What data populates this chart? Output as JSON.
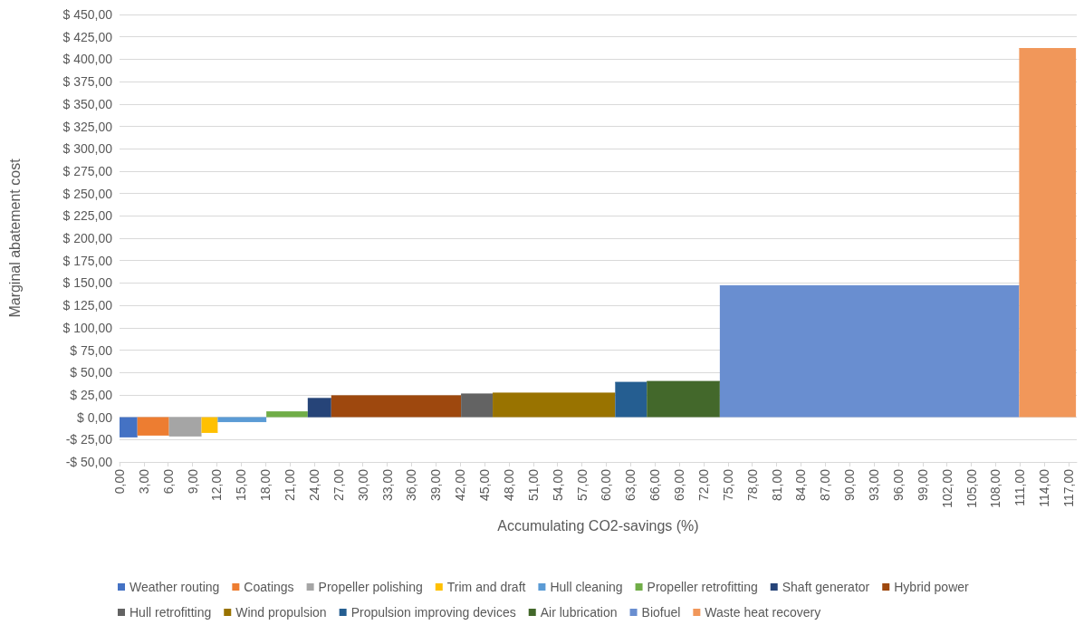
{
  "chart_data": {
    "type": "area",
    "xlabel": "Accumulating CO2-savings (%)",
    "ylabel": "Marginal abatement cost",
    "xlim": [
      0,
      118
    ],
    "xticks": [
      {
        "value": 0,
        "label": "0,00"
      },
      {
        "value": 3,
        "label": "3,00"
      },
      {
        "value": 6,
        "label": "6,00"
      },
      {
        "value": 9,
        "label": "9,00"
      },
      {
        "value": 12,
        "label": "12,00"
      },
      {
        "value": 15,
        "label": "15,00"
      },
      {
        "value": 18,
        "label": "18,00"
      },
      {
        "value": 21,
        "label": "21,00"
      },
      {
        "value": 24,
        "label": "24,00"
      },
      {
        "value": 27,
        "label": "27,00"
      },
      {
        "value": 30,
        "label": "30,00"
      },
      {
        "value": 33,
        "label": "33,00"
      },
      {
        "value": 36,
        "label": "36,00"
      },
      {
        "value": 39,
        "label": "39,00"
      },
      {
        "value": 42,
        "label": "42,00"
      },
      {
        "value": 45,
        "label": "45,00"
      },
      {
        "value": 48,
        "label": "48,00"
      },
      {
        "value": 51,
        "label": "51,00"
      },
      {
        "value": 54,
        "label": "54,00"
      },
      {
        "value": 57,
        "label": "57,00"
      },
      {
        "value": 60,
        "label": "60,00"
      },
      {
        "value": 63,
        "label": "63,00"
      },
      {
        "value": 66,
        "label": "66,00"
      },
      {
        "value": 69,
        "label": "69,00"
      },
      {
        "value": 72,
        "label": "72,00"
      },
      {
        "value": 75,
        "label": "75,00"
      },
      {
        "value": 78,
        "label": "78,00"
      },
      {
        "value": 81,
        "label": "81,00"
      },
      {
        "value": 84,
        "label": "84,00"
      },
      {
        "value": 87,
        "label": "87,00"
      },
      {
        "value": 90,
        "label": "90,00"
      },
      {
        "value": 93,
        "label": "93,00"
      },
      {
        "value": 96,
        "label": "96,00"
      },
      {
        "value": 99,
        "label": "99,00"
      },
      {
        "value": 102,
        "label": "102,00"
      },
      {
        "value": 105,
        "label": "105,00"
      },
      {
        "value": 108,
        "label": "108,00"
      },
      {
        "value": 111,
        "label": "111,00"
      },
      {
        "value": 114,
        "label": "114,00"
      },
      {
        "value": 117,
        "label": "117,00"
      }
    ],
    "ylim": [
      -50,
      450
    ],
    "yticks": [
      {
        "value": -50,
        "label": "-$ 50,00"
      },
      {
        "value": -25,
        "label": "-$ 25,00"
      },
      {
        "value": 0,
        "label": "$ 0,00"
      },
      {
        "value": 25,
        "label": "$ 25,00"
      },
      {
        "value": 50,
        "label": "$ 50,00"
      },
      {
        "value": 75,
        "label": "$ 75,00"
      },
      {
        "value": 100,
        "label": "$ 100,00"
      },
      {
        "value": 125,
        "label": "$ 125,00"
      },
      {
        "value": 150,
        "label": "$ 150,00"
      },
      {
        "value": 175,
        "label": "$ 175,00"
      },
      {
        "value": 200,
        "label": "$ 200,00"
      },
      {
        "value": 225,
        "label": "$ 225,00"
      },
      {
        "value": 250,
        "label": "$ 250,00"
      },
      {
        "value": 275,
        "label": "$ 275,00"
      },
      {
        "value": 300,
        "label": "$ 300,00"
      },
      {
        "value": 325,
        "label": "$ 325,00"
      },
      {
        "value": 350,
        "label": "$ 350,00"
      },
      {
        "value": 375,
        "label": "$ 375,00"
      },
      {
        "value": 400,
        "label": "$ 400,00"
      },
      {
        "value": 425,
        "label": "$ 425,00"
      },
      {
        "value": 450,
        "label": "$ 450,00"
      }
    ],
    "grid": "y",
    "legend": "bottom",
    "marker": "none",
    "series": [
      {
        "name": "Weather routing",
        "color": "#4472c4",
        "x": [
          0,
          2.2
        ],
        "values": [
          -22,
          -22
        ]
      },
      {
        "name": "Coatings",
        "color": "#ed7d31",
        "x": [
          2.2,
          6.1
        ],
        "values": [
          -20,
          -20
        ]
      },
      {
        "name": "Propeller polishing",
        "color": "#a5a5a5",
        "x": [
          6.1,
          10.1
        ],
        "values": [
          -21,
          -21
        ]
      },
      {
        "name": "Trim and draft",
        "color": "#ffc000",
        "x": [
          10.1,
          12.1
        ],
        "values": [
          -17,
          -17
        ]
      },
      {
        "name": "Hull cleaning",
        "color": "#5b9bd5",
        "x": [
          12.1,
          18.1
        ],
        "values": [
          -5,
          -5
        ]
      },
      {
        "name": "Propeller retrofitting",
        "color": "#70ad47",
        "x": [
          18.1,
          23.2
        ],
        "values": [
          6,
          6
        ]
      },
      {
        "name": "Shaft generator",
        "color": "#264478",
        "x": [
          23.2,
          26.1
        ],
        "values": [
          21,
          21
        ]
      },
      {
        "name": "Hybrid power",
        "color": "#9e480e",
        "x": [
          26.1,
          42.1
        ],
        "values": [
          24,
          24
        ]
      },
      {
        "name": "Hull retrofitting",
        "color": "#636363",
        "x": [
          42.1,
          46.0
        ],
        "values": [
          26,
          26
        ]
      },
      {
        "name": "Wind propulsion",
        "color": "#997300",
        "x": [
          46.0,
          61.1
        ],
        "values": [
          27,
          27
        ]
      },
      {
        "name": "Propulsion improving devices",
        "color": "#255e91",
        "x": [
          61.1,
          65.0
        ],
        "values": [
          39,
          39
        ]
      },
      {
        "name": "Air lubrication",
        "color": "#43682b",
        "x": [
          65.0,
          74.0
        ],
        "values": [
          40,
          40
        ]
      },
      {
        "name": "Biofuel",
        "color": "#698ed0",
        "x": [
          74.0,
          110.9
        ],
        "values": [
          147,
          147
        ]
      },
      {
        "name": "Waste heat recovery",
        "color": "#f1975a",
        "x": [
          110.9,
          117.9
        ],
        "values": [
          412,
          412
        ]
      }
    ]
  }
}
